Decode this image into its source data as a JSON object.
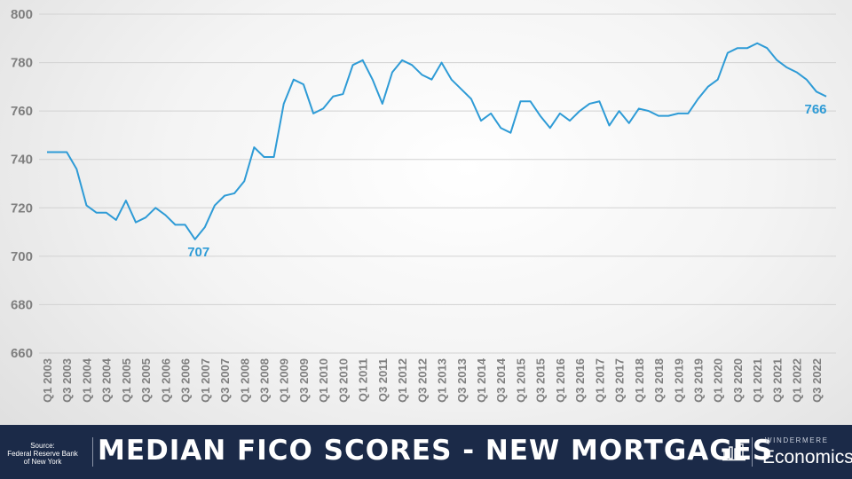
{
  "chart_data": {
    "type": "line",
    "title": "MEDIAN FICO SCORES - NEW MORTGAGES",
    "xlabel": "",
    "ylabel": "",
    "ylim": [
      660,
      800
    ],
    "yticks": [
      660,
      680,
      700,
      720,
      740,
      760,
      780,
      800
    ],
    "grid": true,
    "line_color": "#2e9bd6",
    "x_tick_labels": [
      "Q1 2003",
      "Q3 2003",
      "Q1 2004",
      "Q3 2004",
      "Q1 2005",
      "Q3 2005",
      "Q1 2006",
      "Q3 2006",
      "Q1 2007",
      "Q3 2007",
      "Q1 2008",
      "Q3 2008",
      "Q1 2009",
      "Q3 2009",
      "Q1 2010",
      "Q3 2010",
      "Q1 2011",
      "Q3 2011",
      "Q1 2012",
      "Q3 2012",
      "Q1 2013",
      "Q3 2013",
      "Q1 2014",
      "Q3 2014",
      "Q1 2015",
      "Q3 2015",
      "Q1 2016",
      "Q3 2016",
      "Q1 2017",
      "Q3 2017",
      "Q1 2018",
      "Q3 2018",
      "Q1 2019",
      "Q3 2019",
      "Q1 2020",
      "Q3 2020",
      "Q1 2021",
      "Q3 2021",
      "Q1 2022",
      "Q3 2022"
    ],
    "series": [
      {
        "values": [
          743,
          743,
          743,
          736,
          721,
          718,
          718,
          715,
          723,
          714,
          716,
          720,
          717,
          713,
          713,
          707,
          712,
          721,
          725,
          726,
          731,
          745,
          741,
          741,
          763,
          773,
          771,
          759,
          761,
          766,
          767,
          779,
          781,
          773,
          763,
          776,
          781,
          779,
          775,
          773,
          780,
          773,
          769,
          765,
          756,
          759,
          753,
          751,
          764,
          764,
          758,
          753,
          759,
          756,
          760,
          763,
          764,
          754,
          760,
          755,
          761,
          760,
          758,
          758,
          759,
          759,
          765,
          770,
          773,
          784,
          786,
          786,
          788,
          786,
          781,
          778,
          776,
          773,
          768,
          766
        ]
      }
    ],
    "annotations": [
      {
        "label": "707",
        "quarter": "Q4 2006",
        "value": 707
      },
      {
        "label": "766",
        "quarter": "Q4 2022",
        "value": 766
      }
    ]
  },
  "footer": {
    "source_lines": [
      "Source:",
      "Federal Reserve Bank",
      "of New York"
    ],
    "title": "MEDIAN FICO SCORES - NEW MORTGAGES",
    "brand_top": "WINDERMERE",
    "brand_main": "Economics",
    "icon": "bar-chart-icon",
    "background": "#1b2a48"
  }
}
